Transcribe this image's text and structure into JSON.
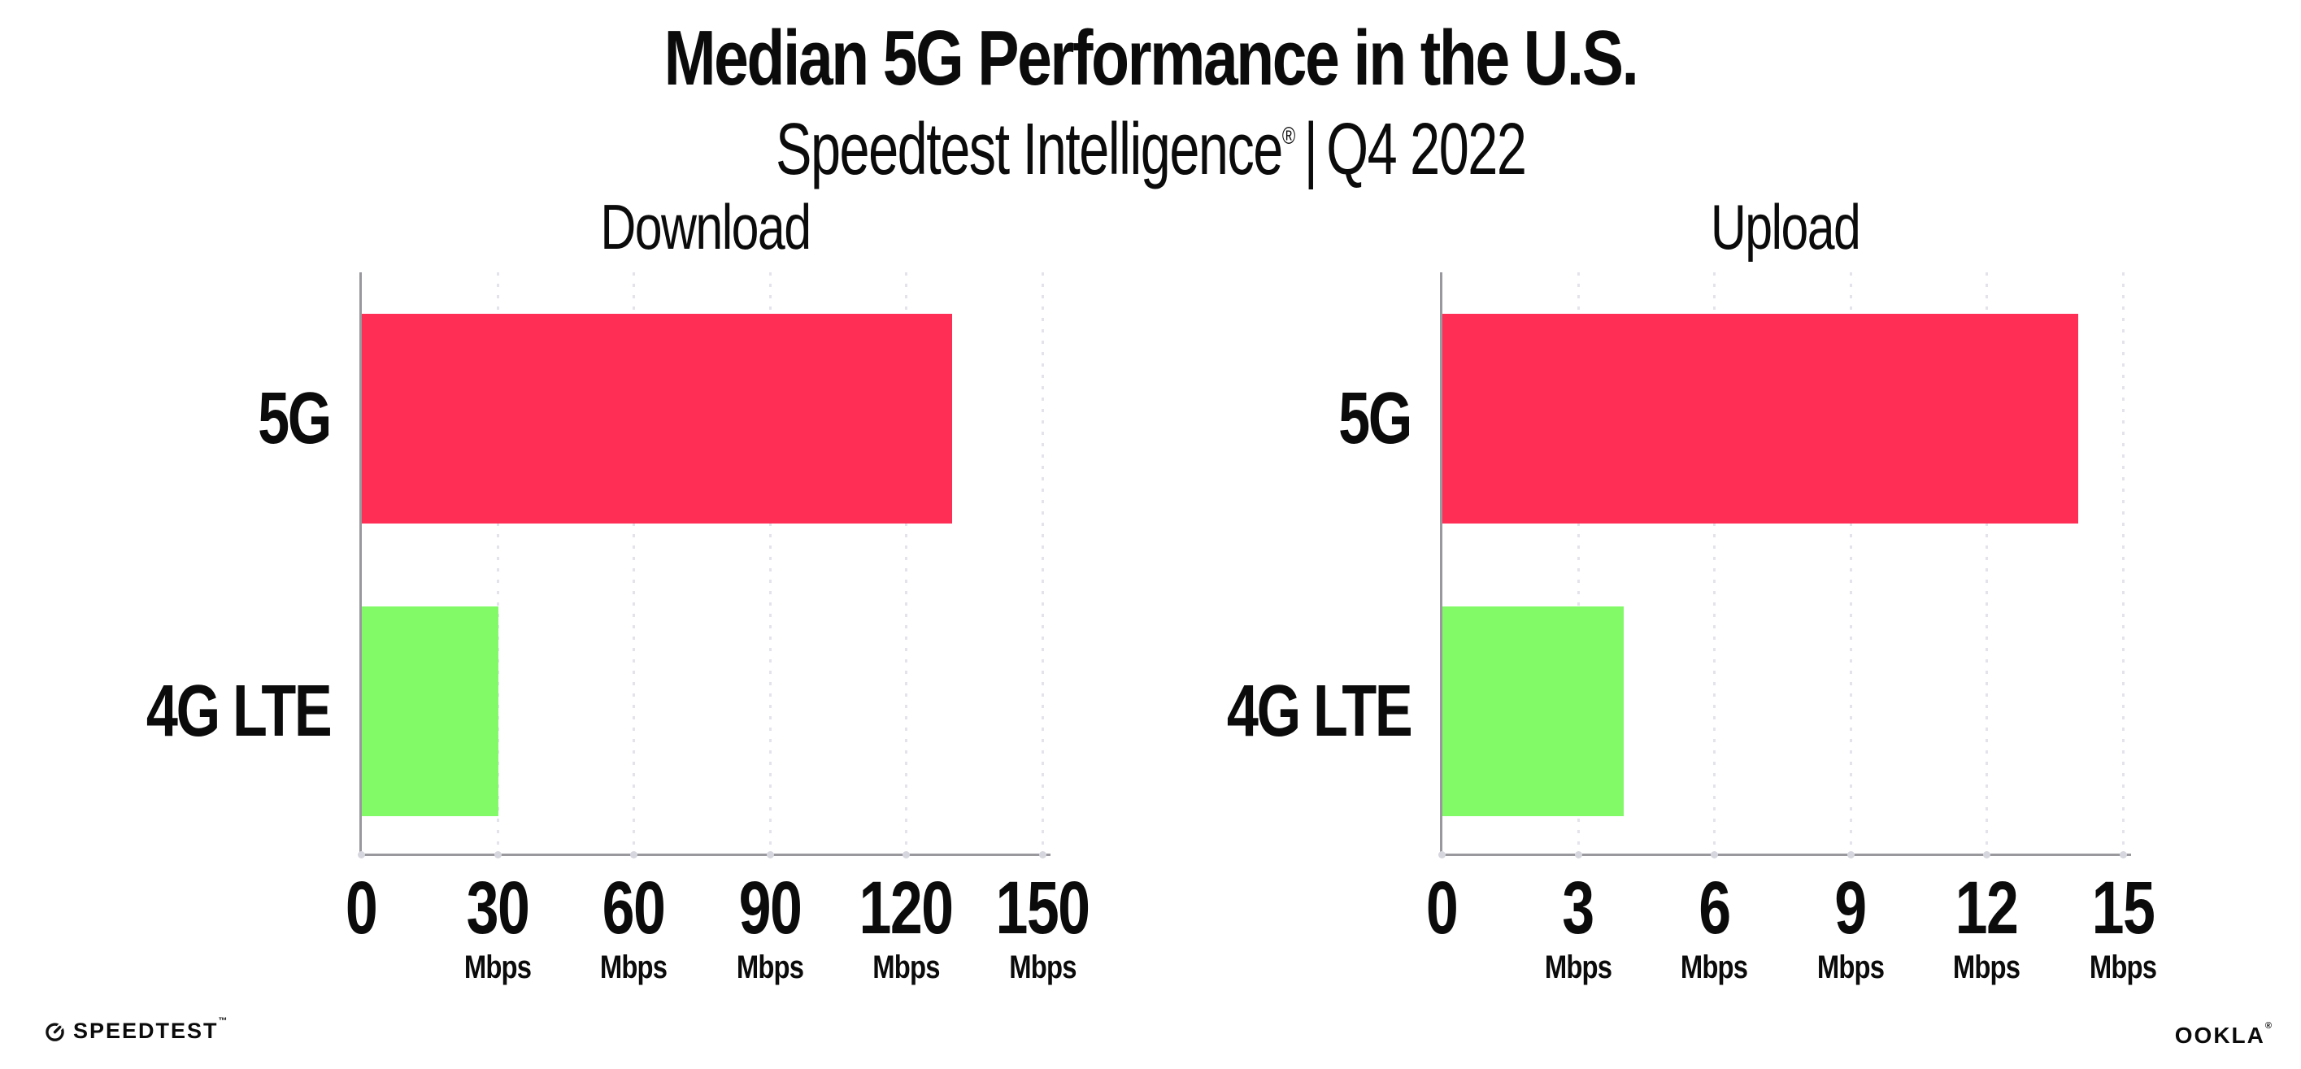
{
  "header": {
    "title": "Median 5G Performance in the U.S.",
    "subtitle": {
      "brand": "Speedtest Intelligence",
      "reg": "®",
      "sep": "|",
      "period": "Q4 2022"
    }
  },
  "chart_data": [
    {
      "type": "bar",
      "orientation": "horizontal",
      "title": "Download",
      "categories": [
        "5G",
        "4G LTE"
      ],
      "values": [
        130,
        30
      ],
      "unit": "Mbps",
      "xlim": [
        0,
        150
      ],
      "xticks": [
        0,
        30,
        60,
        90,
        120,
        150
      ],
      "bar_colors": [
        "#FF2E55",
        "#82FA68"
      ],
      "grid": "dotted-vertical",
      "legend": "none"
    },
    {
      "type": "bar",
      "orientation": "horizontal",
      "title": "Upload",
      "categories": [
        "5G",
        "4G LTE"
      ],
      "values": [
        14,
        4
      ],
      "unit": "Mbps",
      "xlim": [
        0,
        15
      ],
      "xticks": [
        0,
        3,
        6,
        9,
        12,
        15
      ],
      "bar_colors": [
        "#FF2E55",
        "#82FA68"
      ],
      "grid": "dotted-vertical",
      "legend": "none"
    }
  ],
  "footer": {
    "speedtest_text": "SPEEDTEST",
    "speedtest_mark": "™",
    "ookla_text": "OOKLA",
    "ookla_mark": "®"
  },
  "colors": {
    "bar_5g": "#FF2E55",
    "bar_4g_lte": "#82FA68",
    "axis": "#98989D",
    "gridline": "#E3E3EC",
    "text": "#0B0B0B",
    "background": "#FFFFFF"
  }
}
